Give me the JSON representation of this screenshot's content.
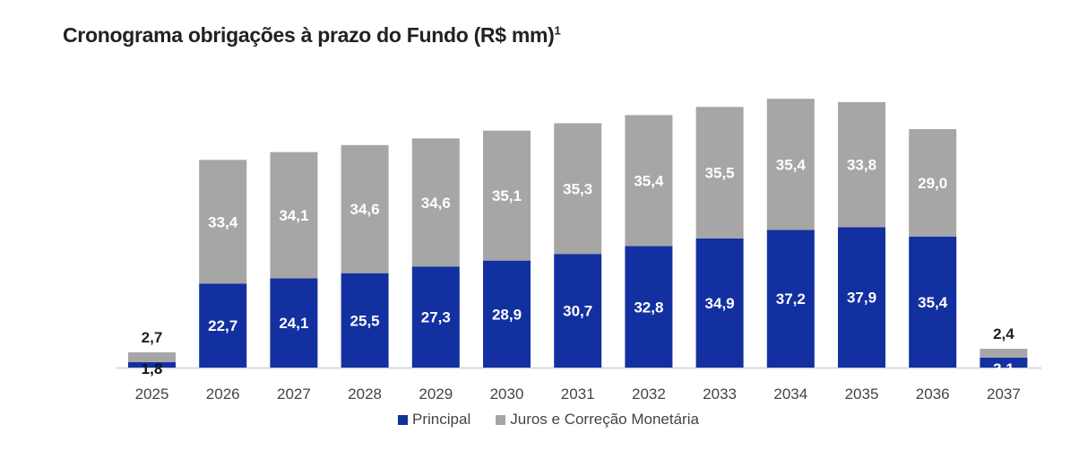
{
  "chart_data": {
    "type": "bar",
    "stacked": true,
    "title": "Cronograma obrigações à prazo do Fundo (R$ mm)",
    "title_footnote": "1",
    "xlabel": "",
    "ylabel": "",
    "grid": false,
    "legend_position": "bottom-center",
    "categories": [
      "2025",
      "2026",
      "2027",
      "2028",
      "2029",
      "2030",
      "2031",
      "2032",
      "2033",
      "2034",
      "2035",
      "2036",
      "2037"
    ],
    "series": [
      {
        "name": "Principal",
        "color": "#1330A0",
        "values": [
          1.8,
          22.7,
          24.1,
          25.5,
          27.3,
          28.9,
          30.7,
          32.8,
          34.9,
          37.2,
          37.9,
          35.4,
          3.1
        ],
        "labels": [
          "1,8",
          "22,7",
          "24,1",
          "25,5",
          "27,3",
          "28,9",
          "30,7",
          "32,8",
          "34,9",
          "37,2",
          "37,9",
          "35,4",
          "3,1"
        ]
      },
      {
        "name": "Juros e Correção Monetária",
        "color": "#A6A6A6",
        "values": [
          2.7,
          33.4,
          34.1,
          34.6,
          34.6,
          35.1,
          35.3,
          35.4,
          35.5,
          35.4,
          33.8,
          29.0,
          2.4
        ],
        "labels": [
          "2,7",
          "33,4",
          "34,1",
          "34,6",
          "34,6",
          "35,1",
          "35,3",
          "35,4",
          "35,5",
          "35,4",
          "33,8",
          "29,0",
          "2,4"
        ]
      }
    ],
    "ylim": [
      0,
      75
    ]
  }
}
